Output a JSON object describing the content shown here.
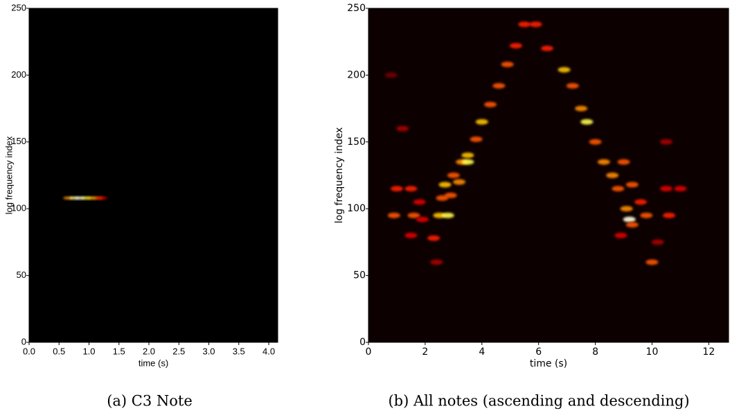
{
  "chart_data": [
    {
      "type": "heatmap",
      "caption": "(a) C3 Note",
      "xlabel": "time (s)",
      "ylabel": "log frequency index",
      "background": "#000000",
      "xlim": [
        0,
        4.15
      ],
      "ylim": [
        0,
        250
      ],
      "xticks": [
        {
          "value": 0,
          "label": "0.0"
        },
        0.5,
        {
          "value": 1,
          "label": "1.0"
        },
        1.5,
        {
          "value": 2,
          "label": "2.0"
        },
        2.5,
        {
          "value": 3,
          "label": "3.0"
        },
        3.5,
        {
          "value": 4,
          "label": "4.0"
        }
      ],
      "yticks": [
        0,
        50,
        100,
        150,
        200,
        250
      ],
      "x": [
        0.65,
        0.75,
        0.85,
        0.95,
        1.05,
        1.15,
        1.22
      ],
      "y": [
        108,
        108,
        108,
        108,
        108,
        108,
        108
      ],
      "intensity": [
        0.7,
        0.95,
        1,
        0.9,
        0.8,
        0.6,
        0.4
      ]
    },
    {
      "type": "heatmap",
      "caption": "(b) All notes (ascending and descending)",
      "xlabel": "time (s)",
      "ylabel": "log frequency index",
      "background": "#0d0000",
      "xlim": [
        0,
        12.7
      ],
      "ylim": [
        0,
        250
      ],
      "xticks": [
        0,
        2,
        4,
        6,
        8,
        10,
        12
      ],
      "yticks": [
        0,
        50,
        100,
        150,
        200,
        250
      ],
      "x": [
        2.3,
        2.5,
        2.6,
        2.7,
        3.0,
        3.3,
        3.5,
        3.8,
        4.0,
        4.3,
        4.6,
        4.9,
        5.2,
        5.5,
        2.8,
        2.9,
        3.2,
        3.5,
        5.9,
        6.3,
        6.9,
        7.2,
        7.5,
        7.7,
        8.0,
        8.3,
        8.6,
        8.8,
        9.1,
        9.2,
        9.3,
        9.0,
        9.3,
        9.6,
        9.8,
        1.0,
        1.5,
        0.9,
        1.6,
        1.9,
        1.5,
        1.2,
        1.8,
        10.5,
        11.0,
        10.6,
        10.0,
        10.2,
        8.9,
        10.5,
        2.4,
        0.8
      ],
      "y": [
        78,
        95,
        108,
        118,
        125,
        135,
        140,
        152,
        165,
        178,
        192,
        208,
        222,
        238,
        95,
        110,
        120,
        135,
        238,
        220,
        204,
        192,
        175,
        165,
        150,
        135,
        125,
        115,
        100,
        92,
        88,
        135,
        118,
        105,
        95,
        115,
        115,
        95,
        95,
        92,
        80,
        160,
        105,
        115,
        115,
        95,
        60,
        75,
        80,
        150,
        60,
        200
      ],
      "intensity": [
        0.5,
        0.8,
        0.6,
        0.8,
        0.6,
        0.7,
        0.8,
        0.6,
        0.8,
        0.6,
        0.6,
        0.6,
        0.5,
        0.5,
        0.9,
        0.6,
        0.7,
        0.9,
        0.5,
        0.5,
        0.8,
        0.6,
        0.7,
        0.9,
        0.6,
        0.7,
        0.7,
        0.6,
        0.7,
        1,
        0.6,
        0.6,
        0.6,
        0.5,
        0.6,
        0.5,
        0.5,
        0.6,
        0.6,
        0.4,
        0.4,
        0.3,
        0.4,
        0.4,
        0.4,
        0.5,
        0.6,
        0.3,
        0.4,
        0.3,
        0.3,
        0.2
      ]
    }
  ]
}
